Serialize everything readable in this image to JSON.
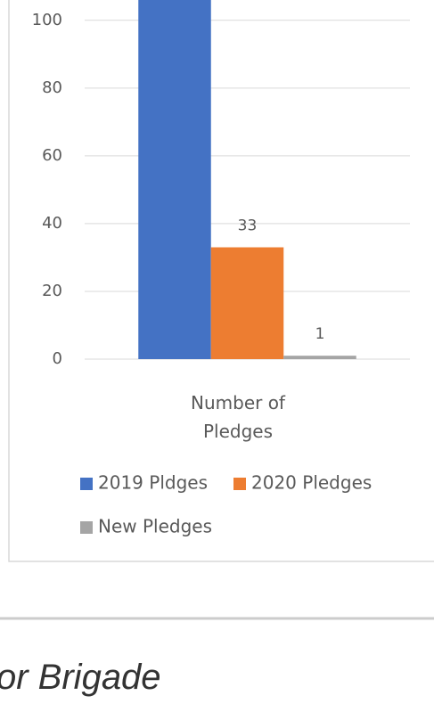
{
  "chart_data": {
    "type": "bar",
    "categories": [
      "Number of Pledges"
    ],
    "series": [
      {
        "name": "2019 Pldges",
        "color": "#4472c4",
        "values": [
          110
        ]
      },
      {
        "name": "2020 Pledges",
        "color": "#ed7d31",
        "values": [
          33
        ]
      },
      {
        "name": "New Pledges",
        "color": "#a5a5a5",
        "values": [
          1
        ]
      }
    ],
    "ylim": [
      0,
      106
    ],
    "yticks": [
      0,
      20,
      40,
      60,
      80,
      100
    ],
    "grid": true,
    "legend": "bottom"
  },
  "footer_text": "or Brigade"
}
